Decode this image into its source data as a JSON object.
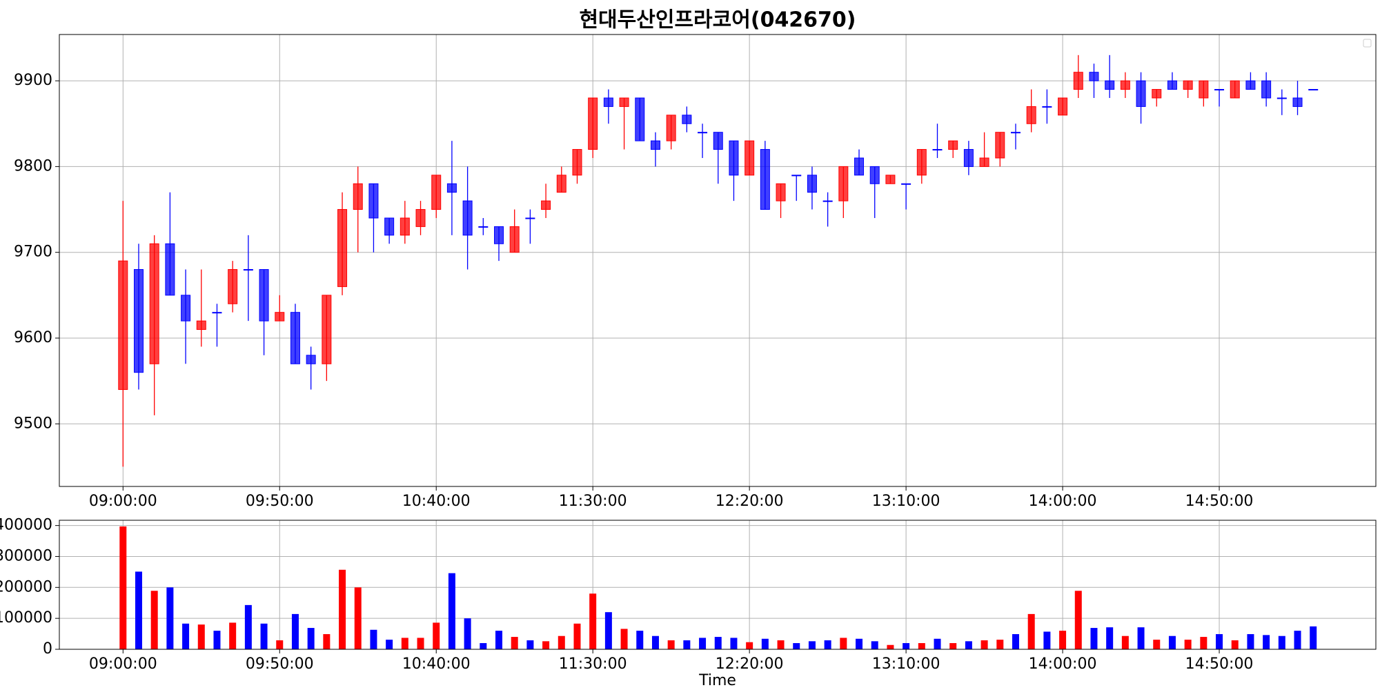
{
  "chart_data": [
    {
      "type": "candlestick",
      "title": "현대두산인프라코어(042670)",
      "x": [
        "09:00:00",
        "09:05:00",
        "09:10:00",
        "09:15:00",
        "09:20:00",
        "09:25:00",
        "09:30:00",
        "09:35:00",
        "09:40:00",
        "09:45:00",
        "09:50:00",
        "09:55:00",
        "10:00:00",
        "10:05:00",
        "10:10:00",
        "10:15:00",
        "10:20:00",
        "10:25:00",
        "10:30:00",
        "10:35:00",
        "10:40:00",
        "10:45:00",
        "10:50:00",
        "10:55:00",
        "11:00:00",
        "11:05:00",
        "11:10:00",
        "11:15:00",
        "11:20:00",
        "11:25:00",
        "11:30:00",
        "11:35:00",
        "11:40:00",
        "11:45:00",
        "11:50:00",
        "11:55:00",
        "12:00:00",
        "12:05:00",
        "12:10:00",
        "12:15:00",
        "12:20:00",
        "12:25:00",
        "12:30:00",
        "12:35:00",
        "12:40:00",
        "12:45:00",
        "12:50:00",
        "12:55:00",
        "13:00:00",
        "13:05:00",
        "13:10:00",
        "13:15:00",
        "13:20:00",
        "13:25:00",
        "13:30:00",
        "13:35:00",
        "13:40:00",
        "13:45:00",
        "13:50:00",
        "13:55:00",
        "14:00:00",
        "14:05:00",
        "14:10:00",
        "14:15:00",
        "14:20:00",
        "14:25:00",
        "14:30:00",
        "14:35:00",
        "14:40:00",
        "14:45:00",
        "14:50:00",
        "14:55:00",
        "15:00:00",
        "15:05:00",
        "15:10:00",
        "15:15:00",
        "15:20:00"
      ],
      "open": [
        9540,
        9680,
        9570,
        9710,
        9650,
        9610,
        9630,
        9640,
        9680,
        9680,
        9620,
        9630,
        9580,
        9570,
        9660,
        9750,
        9780,
        9740,
        9720,
        9730,
        9750,
        9780,
        9760,
        9730,
        9730,
        9700,
        9740,
        9750,
        9770,
        9790,
        9820,
        9880,
        9870,
        9880,
        9830,
        9830,
        9860,
        9840,
        9840,
        9830,
        9790,
        9820,
        9760,
        9790,
        9790,
        9760,
        9760,
        9810,
        9800,
        9780,
        9780,
        9790,
        9820,
        9820,
        9820,
        9800,
        9810,
        9840,
        9850,
        9870,
        9860,
        9890,
        9910,
        9900,
        9890,
        9900,
        9880,
        9900,
        9890,
        9880,
        9890,
        9880,
        9900,
        9900,
        9880,
        9880,
        9890
      ],
      "high": [
        9760,
        9710,
        9720,
        9770,
        9680,
        9680,
        9640,
        9690,
        9720,
        9680,
        9650,
        9640,
        9590,
        9650,
        9770,
        9800,
        9780,
        9740,
        9760,
        9760,
        9790,
        9830,
        9800,
        9740,
        9730,
        9750,
        9750,
        9780,
        9800,
        9820,
        9880,
        9890,
        9880,
        9880,
        9840,
        9860,
        9870,
        9850,
        9840,
        9830,
        9830,
        9830,
        9780,
        9790,
        9800,
        9770,
        9800,
        9820,
        9800,
        9790,
        9780,
        9820,
        9850,
        9830,
        9830,
        9840,
        9840,
        9850,
        9890,
        9890,
        9880,
        9930,
        9920,
        9930,
        9910,
        9910,
        9890,
        9910,
        9900,
        9900,
        9890,
        9900,
        9910,
        9910,
        9890,
        9900,
        9890
      ],
      "low": [
        9450,
        9540,
        9510,
        9650,
        9570,
        9590,
        9590,
        9630,
        9620,
        9580,
        9620,
        9570,
        9540,
        9550,
        9650,
        9700,
        9700,
        9710,
        9710,
        9720,
        9740,
        9720,
        9680,
        9720,
        9690,
        9700,
        9710,
        9740,
        9770,
        9780,
        9810,
        9850,
        9820,
        9830,
        9800,
        9820,
        9840,
        9810,
        9780,
        9760,
        9790,
        9750,
        9740,
        9760,
        9750,
        9730,
        9740,
        9790,
        9740,
        9780,
        9750,
        9780,
        9810,
        9810,
        9790,
        9800,
        9800,
        9820,
        9840,
        9850,
        9860,
        9880,
        9880,
        9880,
        9880,
        9850,
        9870,
        9890,
        9880,
        9870,
        9870,
        9880,
        9890,
        9870,
        9860,
        9860,
        9890
      ],
      "close": [
        9690,
        9560,
        9710,
        9650,
        9620,
        9620,
        9630,
        9680,
        9680,
        9620,
        9630,
        9570,
        9570,
        9650,
        9750,
        9780,
        9740,
        9720,
        9740,
        9750,
        9790,
        9770,
        9720,
        9730,
        9710,
        9730,
        9740,
        9760,
        9790,
        9820,
        9880,
        9870,
        9880,
        9830,
        9820,
        9860,
        9850,
        9840,
        9820,
        9790,
        9830,
        9750,
        9780,
        9790,
        9770,
        9760,
        9800,
        9790,
        9780,
        9790,
        9780,
        9820,
        9820,
        9830,
        9800,
        9810,
        9840,
        9840,
        9870,
        9870,
        9880,
        9910,
        9900,
        9890,
        9900,
        9870,
        9890,
        9890,
        9900,
        9900,
        9890,
        9900,
        9890,
        9880,
        9880,
        9870,
        9890
      ],
      "up_color": "#ff0000",
      "down_color": "#0000ff",
      "xlim": [
        "08:39:40",
        "15:40:00"
      ],
      "xticks": [
        "09:00:00",
        "09:50:00",
        "10:40:00",
        "11:30:00",
        "12:20:00",
        "13:10:00",
        "14:00:00",
        "14:50:00"
      ],
      "ylim": [
        9427,
        9954
      ],
      "yticks": [
        9500,
        9600,
        9700,
        9800,
        9900
      ],
      "grid": true
    },
    {
      "type": "volume",
      "xlabel": "Time",
      "values": [
        397000,
        251000,
        189000,
        200000,
        83000,
        80000,
        60000,
        86000,
        143000,
        83000,
        29000,
        114000,
        69000,
        49000,
        257000,
        200000,
        63000,
        31000,
        37000,
        37000,
        86000,
        246000,
        100000,
        20000,
        60000,
        40000,
        29000,
        26000,
        43000,
        83000,
        180000,
        120000,
        66000,
        60000,
        43000,
        29000,
        29000,
        37000,
        40000,
        37000,
        23000,
        34000,
        29000,
        20000,
        26000,
        29000,
        37000,
        34000,
        26000,
        14000,
        20000,
        20000,
        34000,
        20000,
        26000,
        29000,
        31000,
        49000,
        114000,
        57000,
        60000,
        189000,
        69000,
        71000,
        43000,
        71000,
        31000,
        43000,
        31000,
        40000,
        49000,
        29000,
        49000,
        46000,
        43000,
        60000,
        74000
      ],
      "xlim": [
        "08:39:40",
        "15:40:00"
      ],
      "xticks": [
        "09:00:00",
        "09:50:00",
        "10:40:00",
        "11:30:00",
        "12:20:00",
        "13:10:00",
        "14:00:00",
        "14:50:00"
      ],
      "ylim": [
        0,
        417000
      ],
      "yticks": [
        0,
        100000,
        200000,
        300000,
        400000
      ],
      "grid": true
    }
  ]
}
